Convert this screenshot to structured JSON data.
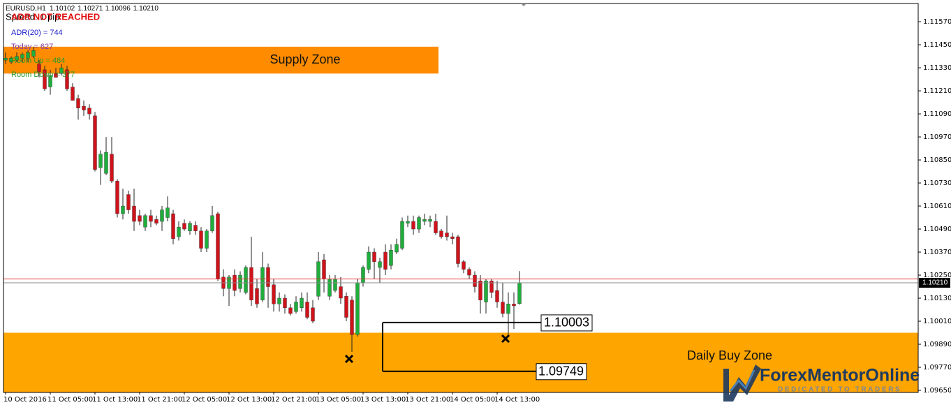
{
  "chart_data": {
    "type": "candlestick",
    "symbol": "EURUSD,H1",
    "header_ohlc": [
      "1.10102",
      "1.10271",
      "1.10096",
      "1.10210"
    ],
    "categories": [
      "10 Oct 2016",
      null,
      null,
      null,
      null,
      null,
      null,
      null,
      "11 Oct 05:00",
      null,
      null,
      null,
      null,
      null,
      null,
      null,
      "11 Oct 13:00",
      null,
      null,
      null,
      null,
      null,
      null,
      null,
      "11 Oct 21:00",
      null,
      null,
      null,
      null,
      null,
      null,
      null,
      "12 Oct 05:00",
      null,
      null,
      null,
      null,
      null,
      null,
      null,
      "12 Oct 13:00",
      null,
      null,
      null,
      null,
      null,
      null,
      null,
      "12 Oct 21:00",
      null,
      null,
      null,
      null,
      null,
      null,
      null,
      "13 Oct 05:00",
      null,
      null,
      null,
      null,
      null,
      null,
      null,
      "13 Oct 13:00",
      null,
      null,
      null,
      null,
      null,
      null,
      null,
      "13 Oct 21:00",
      null,
      null,
      null,
      null,
      null,
      null,
      null,
      "14 Oct 05:00",
      null,
      null,
      null,
      null,
      null,
      null,
      null,
      "14 Oct 13:00",
      null,
      null,
      null,
      null
    ],
    "open": [
      1.1137,
      1.1136,
      1.1137,
      1.1138,
      1.1138,
      1.1139,
      1.1135,
      1.1132,
      1.1123,
      1.113,
      1.113,
      1.1132,
      1.1123,
      1.1117,
      1.1113,
      1.1112,
      1.1108,
      1.1081,
      1.1078,
      1.1088,
      1.1074,
      1.1057,
      1.1067,
      1.1061,
      1.1056,
      1.105,
      1.1056,
      1.1054,
      1.1053,
      1.1055,
      1.1057,
      1.1045,
      1.1052,
      1.1048,
      1.1051,
      1.1048,
      1.1039,
      1.1048,
      1.1057,
      1.1024,
      1.1018,
      1.1025,
      1.1018,
      1.1016,
      1.1029,
      1.1018,
      1.1012,
      1.1029,
      1.102,
      1.101,
      1.1013,
      1.1008,
      1.1006,
      1.1008,
      1.1011,
      1.1008,
      1.1014,
      1.1033,
      1.1014,
      1.1017,
      1.1019,
      1.1014,
      1.1012,
      1.0994,
      1.1021,
      1.1028,
      1.1037,
      1.1029,
      1.1037,
      1.103,
      1.1037,
      1.1039,
      1.1052,
      1.1053,
      1.1049,
      1.1053,
      1.1053,
      1.1053,
      1.1048,
      1.1047,
      1.1045,
      1.1045,
      1.1032,
      1.1028,
      1.1025,
      1.1022,
      1.1011,
      1.1022,
      1.1017,
      1.1011,
      1.1005,
      1.101,
      1.10102
    ],
    "high": [
      1.1141,
      1.1139,
      1.1141,
      1.1141,
      1.1142,
      1.1144,
      1.1137,
      1.1134,
      1.1132,
      1.1133,
      1.1135,
      1.1134,
      1.1125,
      1.1119,
      1.1116,
      1.1114,
      1.111,
      1.109,
      1.1097,
      1.1097,
      1.1075,
      1.107,
      1.1069,
      1.107,
      1.1059,
      1.1057,
      1.1059,
      1.1056,
      1.1061,
      1.1066,
      1.1059,
      1.1053,
      1.1054,
      1.1053,
      1.1053,
      1.105,
      1.1049,
      1.1061,
      1.1058,
      1.1028,
      1.1025,
      1.1028,
      1.1027,
      1.103,
      1.1045,
      1.1023,
      1.1037,
      1.1031,
      1.1023,
      1.1016,
      1.1015,
      1.101,
      1.1014,
      1.1016,
      1.1016,
      1.1012,
      1.1037,
      1.1036,
      1.1025,
      1.1025,
      1.1024,
      1.1016,
      1.1014,
      1.1023,
      1.103,
      1.104,
      1.1039,
      1.1034,
      1.1041,
      1.1041,
      1.1044,
      1.1055,
      1.1056,
      1.1056,
      1.1056,
      1.1057,
      1.1056,
      1.1057,
      1.1049,
      1.1056,
      1.1047,
      1.1046,
      1.1033,
      1.1029,
      1.1027,
      1.1025,
      1.1023,
      1.1023,
      1.1022,
      1.1021,
      1.1016,
      1.1016,
      1.10271
    ],
    "low": [
      1.1135,
      1.1135,
      1.1136,
      1.1136,
      1.1136,
      1.1138,
      1.1128,
      1.1121,
      1.1119,
      1.1128,
      1.1129,
      1.1121,
      1.1116,
      1.1106,
      1.1108,
      1.1106,
      1.1079,
      1.1072,
      1.1077,
      1.1073,
      1.1055,
      1.1054,
      1.1057,
      1.1048,
      1.1051,
      1.1048,
      1.105,
      1.1051,
      1.1048,
      1.1053,
      1.1041,
      1.1043,
      1.1048,
      1.1046,
      1.1046,
      1.1037,
      1.1037,
      1.1047,
      1.1022,
      1.1014,
      1.1009,
      1.1014,
      1.1016,
      1.1015,
      1.1009,
      1.1008,
      1.1011,
      1.1008,
      1.1006,
      1.1006,
      1.1005,
      1.1004,
      1.1005,
      1.1006,
      1.1002,
      1.1,
      1.1012,
      1.1016,
      1.1012,
      1.1016,
      1.101,
      1.1001,
      1.0985,
      1.0993,
      1.1019,
      1.1026,
      1.1023,
      1.1021,
      1.1025,
      1.1028,
      1.1036,
      1.1038,
      1.105,
      1.1046,
      1.1047,
      1.1051,
      1.105,
      1.1046,
      1.1044,
      1.1043,
      1.1041,
      1.1029,
      1.1026,
      1.1023,
      1.1016,
      1.1005,
      1.1005,
      1.1013,
      1.1008,
      1.1003,
      1.0994,
      1.0997,
      1.10096
    ],
    "close": [
      1.1138,
      1.1138,
      1.1139,
      1.114,
      1.1141,
      1.1142,
      1.1131,
      1.1122,
      1.1129,
      1.1128,
      1.1133,
      1.1122,
      1.1116,
      1.1112,
      1.1111,
      1.1109,
      1.108,
      1.1088,
      1.1089,
      1.1074,
      1.1057,
      1.1061,
      1.1059,
      1.1053,
      1.1053,
      1.1056,
      1.1053,
      1.1052,
      1.1059,
      1.106,
      1.1044,
      1.105,
      1.1049,
      1.1052,
      1.1048,
      1.1039,
      1.1048,
      1.1056,
      1.1023,
      1.1018,
      1.1024,
      1.1017,
      1.1025,
      1.1029,
      1.1012,
      1.101,
      1.1029,
      1.1019,
      1.101,
      1.1013,
      1.1008,
      1.1005,
      1.1011,
      1.1013,
      1.1003,
      1.1001,
      1.1032,
      1.1023,
      1.1023,
      1.1023,
      1.1013,
      1.1003,
      1.0994,
      1.1021,
      1.1029,
      1.1037,
      1.1032,
      1.1032,
      1.1028,
      1.1038,
      1.1041,
      1.1053,
      1.1053,
      1.1049,
      1.1055,
      1.1054,
      1.1054,
      1.1047,
      1.1045,
      1.1045,
      1.1044,
      1.1031,
      1.1028,
      1.1025,
      1.1019,
      1.1012,
      1.1022,
      1.1016,
      1.1011,
      1.1005,
      1.101,
      1.1009,
      1.1021
    ],
    "up_color": "#1fae3c",
    "down_color": "#d0131b",
    "ylim": [
      1.09639,
      1.11665
    ],
    "yticks": [
      {
        "value": 1.1157,
        "label": "1.11570"
      },
      {
        "value": 1.1145,
        "label": "1.11450"
      },
      {
        "value": 1.1133,
        "label": "1.11330"
      },
      {
        "value": 1.1121,
        "label": "1.11210"
      },
      {
        "value": 1.1109,
        "label": "1.11090"
      },
      {
        "value": 1.1097,
        "label": "1.10970"
      },
      {
        "value": 1.1085,
        "label": "1.10850"
      },
      {
        "value": 1.1073,
        "label": "1.10730"
      },
      {
        "value": 1.1061,
        "label": "1.10610"
      },
      {
        "value": 1.1049,
        "label": "1.10490"
      },
      {
        "value": 1.1037,
        "label": "1.10370"
      },
      {
        "value": 1.1025,
        "label": "1.10250"
      },
      {
        "value": 1.1013,
        "label": "1.10130"
      },
      {
        "value": 1.1001,
        "label": "1.10010"
      },
      {
        "value": 1.0989,
        "label": "1.09890"
      },
      {
        "value": 1.0977,
        "label": "1.09770"
      },
      {
        "value": 1.0965,
        "label": "1.09650"
      }
    ],
    "bid": {
      "value": 1.1021,
      "label": "1.10210"
    },
    "ask": 1.1023,
    "zones": [
      {
        "name": "Supply Zone",
        "top": 1.1144,
        "bottom": 1.113,
        "color": "#ff8c00"
      },
      {
        "name": "Daily Buy Zone",
        "top": 1.0995,
        "bottom": 1.09639,
        "color": "#ffa500"
      }
    ],
    "levels": [
      1.10003,
      1.09749
    ],
    "indicator": {
      "spread": "Spread: 1 pip",
      "status": "ADR NOT REACHED",
      "adr": "ADR(20) = 744",
      "today": "Today = 627",
      "room_up": "Room Up = 484",
      "room_down": "Room Down = 377"
    }
  },
  "logo": {
    "name": "ForexMentorOnline",
    "tagline": "DEDICATED TO TRADERS"
  }
}
